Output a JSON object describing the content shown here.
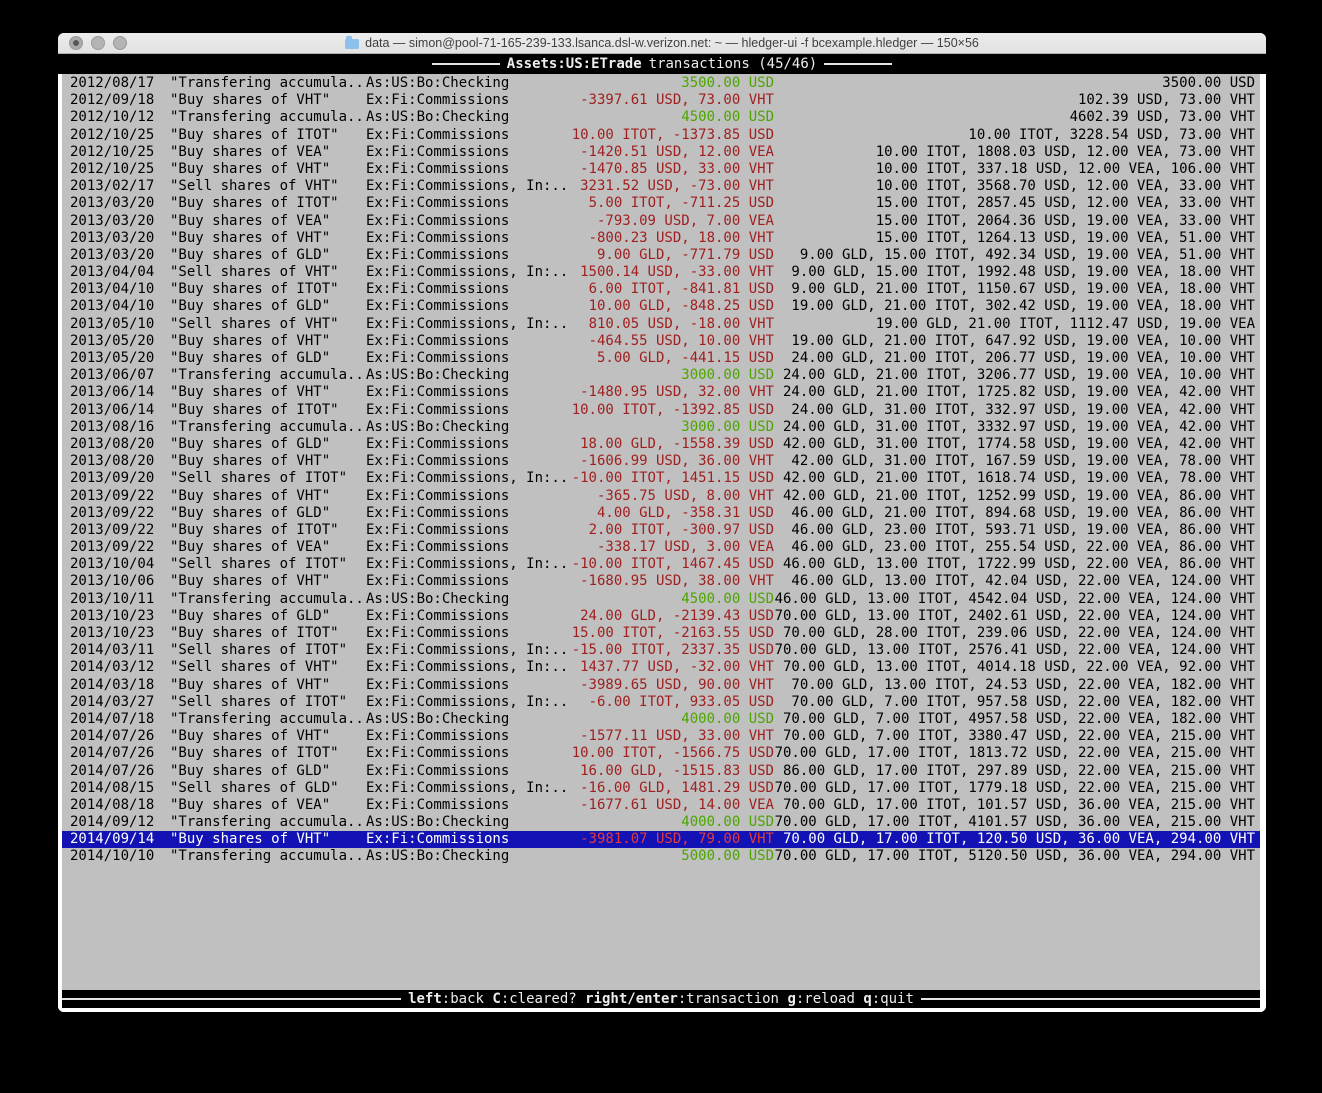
{
  "window": {
    "title": "data — simon@pool-71-165-239-133.lsanca.dsl-w.verizon.net: ~ — hledger-ui -f bcexample.hledger — 150×56",
    "traffic_lights": [
      "close",
      "minimize",
      "zoom"
    ]
  },
  "topbar": {
    "account": "Assets:US:ETrade",
    "mode": "transactions (45/46)"
  },
  "colors": {
    "terminal_bg": "#c0c0c0",
    "bar_bg": "#000000",
    "green": "#4ca500",
    "red": "#a02020",
    "red_selected": "#e33b3b",
    "selection_bg": "#1212b5"
  },
  "keybar": {
    "keys": [
      {
        "k": "left",
        "d": ":back"
      },
      {
        "k": "C",
        "d": ":cleared?"
      },
      {
        "k": "right/enter",
        "d": ":transaction"
      },
      {
        "k": "g",
        "d": ":reload"
      },
      {
        "k": "q",
        "d": ":quit"
      }
    ]
  },
  "transactions": [
    {
      "date": "2012/08/17",
      "desc": "\"Transfering accumula..",
      "acct": "As:US:Bo:Checking",
      "chg": "3500.00 USD",
      "chg_color": "green",
      "bal": "3500.00 USD",
      "selected": false
    },
    {
      "date": "2012/09/18",
      "desc": "\"Buy shares of VHT\"",
      "acct": "Ex:Fi:Commissions",
      "chg": "-3397.61 USD, 73.00 VHT",
      "chg_color": "red",
      "bal": "102.39 USD, 73.00 VHT",
      "selected": false
    },
    {
      "date": "2012/10/12",
      "desc": "\"Transfering accumula..",
      "acct": "As:US:Bo:Checking",
      "chg": "4500.00 USD",
      "chg_color": "green",
      "bal": "4602.39 USD, 73.00 VHT",
      "selected": false
    },
    {
      "date": "2012/10/25",
      "desc": "\"Buy shares of ITOT\"",
      "acct": "Ex:Fi:Commissions",
      "chg": "10.00 ITOT, -1373.85 USD",
      "chg_color": "red",
      "bal": "10.00 ITOT, 3228.54 USD, 73.00 VHT",
      "selected": false
    },
    {
      "date": "2012/10/25",
      "desc": "\"Buy shares of VEA\"",
      "acct": "Ex:Fi:Commissions",
      "chg": "-1420.51 USD, 12.00 VEA",
      "chg_color": "red",
      "bal": "10.00 ITOT, 1808.03 USD, 12.00 VEA, 73.00 VHT",
      "selected": false
    },
    {
      "date": "2012/10/25",
      "desc": "\"Buy shares of VHT\"",
      "acct": "Ex:Fi:Commissions",
      "chg": "-1470.85 USD, 33.00 VHT",
      "chg_color": "red",
      "bal": "10.00 ITOT, 337.18 USD, 12.00 VEA, 106.00 VHT",
      "selected": false
    },
    {
      "date": "2013/02/17",
      "desc": "\"Sell shares of VHT\"",
      "acct": "Ex:Fi:Commissions, In:..",
      "chg": "3231.52 USD, -73.00 VHT",
      "chg_color": "red",
      "bal": "10.00 ITOT, 3568.70 USD, 12.00 VEA, 33.00 VHT",
      "selected": false
    },
    {
      "date": "2013/03/20",
      "desc": "\"Buy shares of ITOT\"",
      "acct": "Ex:Fi:Commissions",
      "chg": "5.00 ITOT, -711.25 USD",
      "chg_color": "red",
      "bal": "15.00 ITOT, 2857.45 USD, 12.00 VEA, 33.00 VHT",
      "selected": false
    },
    {
      "date": "2013/03/20",
      "desc": "\"Buy shares of VEA\"",
      "acct": "Ex:Fi:Commissions",
      "chg": "-793.09 USD, 7.00 VEA",
      "chg_color": "red",
      "bal": "15.00 ITOT, 2064.36 USD, 19.00 VEA, 33.00 VHT",
      "selected": false
    },
    {
      "date": "2013/03/20",
      "desc": "\"Buy shares of VHT\"",
      "acct": "Ex:Fi:Commissions",
      "chg": "-800.23 USD, 18.00 VHT",
      "chg_color": "red",
      "bal": "15.00 ITOT, 1264.13 USD, 19.00 VEA, 51.00 VHT",
      "selected": false
    },
    {
      "date": "2013/03/20",
      "desc": "\"Buy shares of GLD\"",
      "acct": "Ex:Fi:Commissions",
      "chg": "9.00 GLD, -771.79 USD",
      "chg_color": "red",
      "bal": "9.00 GLD, 15.00 ITOT, 492.34 USD, 19.00 VEA, 51.00 VHT",
      "selected": false
    },
    {
      "date": "2013/04/04",
      "desc": "\"Sell shares of VHT\"",
      "acct": "Ex:Fi:Commissions, In:..",
      "chg": "1500.14 USD, -33.00 VHT",
      "chg_color": "red",
      "bal": "9.00 GLD, 15.00 ITOT, 1992.48 USD, 19.00 VEA, 18.00 VHT",
      "selected": false
    },
    {
      "date": "2013/04/10",
      "desc": "\"Buy shares of ITOT\"",
      "acct": "Ex:Fi:Commissions",
      "chg": "6.00 ITOT, -841.81 USD",
      "chg_color": "red",
      "bal": "9.00 GLD, 21.00 ITOT, 1150.67 USD, 19.00 VEA, 18.00 VHT",
      "selected": false
    },
    {
      "date": "2013/04/10",
      "desc": "\"Buy shares of GLD\"",
      "acct": "Ex:Fi:Commissions",
      "chg": "10.00 GLD, -848.25 USD",
      "chg_color": "red",
      "bal": "19.00 GLD, 21.00 ITOT, 302.42 USD, 19.00 VEA, 18.00 VHT",
      "selected": false
    },
    {
      "date": "2013/05/10",
      "desc": "\"Sell shares of VHT\"",
      "acct": "Ex:Fi:Commissions, In:..",
      "chg": "810.05 USD, -18.00 VHT",
      "chg_color": "red",
      "bal": "19.00 GLD, 21.00 ITOT, 1112.47 USD, 19.00 VEA",
      "selected": false
    },
    {
      "date": "2013/05/20",
      "desc": "\"Buy shares of VHT\"",
      "acct": "Ex:Fi:Commissions",
      "chg": "-464.55 USD, 10.00 VHT",
      "chg_color": "red",
      "bal": "19.00 GLD, 21.00 ITOT, 647.92 USD, 19.00 VEA, 10.00 VHT",
      "selected": false
    },
    {
      "date": "2013/05/20",
      "desc": "\"Buy shares of GLD\"",
      "acct": "Ex:Fi:Commissions",
      "chg": "5.00 GLD, -441.15 USD",
      "chg_color": "red",
      "bal": "24.00 GLD, 21.00 ITOT, 206.77 USD, 19.00 VEA, 10.00 VHT",
      "selected": false
    },
    {
      "date": "2013/06/07",
      "desc": "\"Transfering accumula..",
      "acct": "As:US:Bo:Checking",
      "chg": "3000.00 USD",
      "chg_color": "green",
      "bal": "24.00 GLD, 21.00 ITOT, 3206.77 USD, 19.00 VEA, 10.00 VHT",
      "selected": false
    },
    {
      "date": "2013/06/14",
      "desc": "\"Buy shares of VHT\"",
      "acct": "Ex:Fi:Commissions",
      "chg": "-1480.95 USD, 32.00 VHT",
      "chg_color": "red",
      "bal": "24.00 GLD, 21.00 ITOT, 1725.82 USD, 19.00 VEA, 42.00 VHT",
      "selected": false
    },
    {
      "date": "2013/06/14",
      "desc": "\"Buy shares of ITOT\"",
      "acct": "Ex:Fi:Commissions",
      "chg": "10.00 ITOT, -1392.85 USD",
      "chg_color": "red",
      "bal": "24.00 GLD, 31.00 ITOT, 332.97 USD, 19.00 VEA, 42.00 VHT",
      "selected": false
    },
    {
      "date": "2013/08/16",
      "desc": "\"Transfering accumula..",
      "acct": "As:US:Bo:Checking",
      "chg": "3000.00 USD",
      "chg_color": "green",
      "bal": "24.00 GLD, 31.00 ITOT, 3332.97 USD, 19.00 VEA, 42.00 VHT",
      "selected": false
    },
    {
      "date": "2013/08/20",
      "desc": "\"Buy shares of GLD\"",
      "acct": "Ex:Fi:Commissions",
      "chg": "18.00 GLD, -1558.39 USD",
      "chg_color": "red",
      "bal": "42.00 GLD, 31.00 ITOT, 1774.58 USD, 19.00 VEA, 42.00 VHT",
      "selected": false
    },
    {
      "date": "2013/08/20",
      "desc": "\"Buy shares of VHT\"",
      "acct": "Ex:Fi:Commissions",
      "chg": "-1606.99 USD, 36.00 VHT",
      "chg_color": "red",
      "bal": "42.00 GLD, 31.00 ITOT, 167.59 USD, 19.00 VEA, 78.00 VHT",
      "selected": false
    },
    {
      "date": "2013/09/20",
      "desc": "\"Sell shares of ITOT\"",
      "acct": "Ex:Fi:Commissions, In:..",
      "chg": "-10.00 ITOT, 1451.15 USD",
      "chg_color": "red",
      "bal": "42.00 GLD, 21.00 ITOT, 1618.74 USD, 19.00 VEA, 78.00 VHT",
      "selected": false
    },
    {
      "date": "2013/09/22",
      "desc": "\"Buy shares of VHT\"",
      "acct": "Ex:Fi:Commissions",
      "chg": "-365.75 USD, 8.00 VHT",
      "chg_color": "red",
      "bal": "42.00 GLD, 21.00 ITOT, 1252.99 USD, 19.00 VEA, 86.00 VHT",
      "selected": false
    },
    {
      "date": "2013/09/22",
      "desc": "\"Buy shares of GLD\"",
      "acct": "Ex:Fi:Commissions",
      "chg": "4.00 GLD, -358.31 USD",
      "chg_color": "red",
      "bal": "46.00 GLD, 21.00 ITOT, 894.68 USD, 19.00 VEA, 86.00 VHT",
      "selected": false
    },
    {
      "date": "2013/09/22",
      "desc": "\"Buy shares of ITOT\"",
      "acct": "Ex:Fi:Commissions",
      "chg": "2.00 ITOT, -300.97 USD",
      "chg_color": "red",
      "bal": "46.00 GLD, 23.00 ITOT, 593.71 USD, 19.00 VEA, 86.00 VHT",
      "selected": false
    },
    {
      "date": "2013/09/22",
      "desc": "\"Buy shares of VEA\"",
      "acct": "Ex:Fi:Commissions",
      "chg": "-338.17 USD, 3.00 VEA",
      "chg_color": "red",
      "bal": "46.00 GLD, 23.00 ITOT, 255.54 USD, 22.00 VEA, 86.00 VHT",
      "selected": false
    },
    {
      "date": "2013/10/04",
      "desc": "\"Sell shares of ITOT\"",
      "acct": "Ex:Fi:Commissions, In:..",
      "chg": "-10.00 ITOT, 1467.45 USD",
      "chg_color": "red",
      "bal": "46.00 GLD, 13.00 ITOT, 1722.99 USD, 22.00 VEA, 86.00 VHT",
      "selected": false
    },
    {
      "date": "2013/10/06",
      "desc": "\"Buy shares of VHT\"",
      "acct": "Ex:Fi:Commissions",
      "chg": "-1680.95 USD, 38.00 VHT",
      "chg_color": "red",
      "bal": "46.00 GLD, 13.00 ITOT, 42.04 USD, 22.00 VEA, 124.00 VHT",
      "selected": false
    },
    {
      "date": "2013/10/11",
      "desc": "\"Transfering accumula..",
      "acct": "As:US:Bo:Checking",
      "chg": "4500.00 USD",
      "chg_color": "green",
      "bal": "46.00 GLD, 13.00 ITOT, 4542.04 USD, 22.00 VEA, 124.00 VHT",
      "selected": false
    },
    {
      "date": "2013/10/23",
      "desc": "\"Buy shares of GLD\"",
      "acct": "Ex:Fi:Commissions",
      "chg": "24.00 GLD, -2139.43 USD",
      "chg_color": "red",
      "bal": "70.00 GLD, 13.00 ITOT, 2402.61 USD, 22.00 VEA, 124.00 VHT",
      "selected": false
    },
    {
      "date": "2013/10/23",
      "desc": "\"Buy shares of ITOT\"",
      "acct": "Ex:Fi:Commissions",
      "chg": "15.00 ITOT, -2163.55 USD",
      "chg_color": "red",
      "bal": "70.00 GLD, 28.00 ITOT, 239.06 USD, 22.00 VEA, 124.00 VHT",
      "selected": false
    },
    {
      "date": "2014/03/11",
      "desc": "\"Sell shares of ITOT\"",
      "acct": "Ex:Fi:Commissions, In:..",
      "chg": "-15.00 ITOT, 2337.35 USD",
      "chg_color": "red",
      "bal": "70.00 GLD, 13.00 ITOT, 2576.41 USD, 22.00 VEA, 124.00 VHT",
      "selected": false
    },
    {
      "date": "2014/03/12",
      "desc": "\"Sell shares of VHT\"",
      "acct": "Ex:Fi:Commissions, In:..",
      "chg": "1437.77 USD, -32.00 VHT",
      "chg_color": "red",
      "bal": "70.00 GLD, 13.00 ITOT, 4014.18 USD, 22.00 VEA, 92.00 VHT",
      "selected": false
    },
    {
      "date": "2014/03/18",
      "desc": "\"Buy shares of VHT\"",
      "acct": "Ex:Fi:Commissions",
      "chg": "-3989.65 USD, 90.00 VHT",
      "chg_color": "red",
      "bal": "70.00 GLD, 13.00 ITOT, 24.53 USD, 22.00 VEA, 182.00 VHT",
      "selected": false
    },
    {
      "date": "2014/03/27",
      "desc": "\"Sell shares of ITOT\"",
      "acct": "Ex:Fi:Commissions, In:..",
      "chg": "-6.00 ITOT, 933.05 USD",
      "chg_color": "red",
      "bal": "70.00 GLD, 7.00 ITOT, 957.58 USD, 22.00 VEA, 182.00 VHT",
      "selected": false
    },
    {
      "date": "2014/07/18",
      "desc": "\"Transfering accumula..",
      "acct": "As:US:Bo:Checking",
      "chg": "4000.00 USD",
      "chg_color": "green",
      "bal": "70.00 GLD, 7.00 ITOT, 4957.58 USD, 22.00 VEA, 182.00 VHT",
      "selected": false
    },
    {
      "date": "2014/07/26",
      "desc": "\"Buy shares of VHT\"",
      "acct": "Ex:Fi:Commissions",
      "chg": "-1577.11 USD, 33.00 VHT",
      "chg_color": "red",
      "bal": "70.00 GLD, 7.00 ITOT, 3380.47 USD, 22.00 VEA, 215.00 VHT",
      "selected": false
    },
    {
      "date": "2014/07/26",
      "desc": "\"Buy shares of ITOT\"",
      "acct": "Ex:Fi:Commissions",
      "chg": "10.00 ITOT, -1566.75 USD",
      "chg_color": "red",
      "bal": "70.00 GLD, 17.00 ITOT, 1813.72 USD, 22.00 VEA, 215.00 VHT",
      "selected": false
    },
    {
      "date": "2014/07/26",
      "desc": "\"Buy shares of GLD\"",
      "acct": "Ex:Fi:Commissions",
      "chg": "16.00 GLD, -1515.83 USD",
      "chg_color": "red",
      "bal": "86.00 GLD, 17.00 ITOT, 297.89 USD, 22.00 VEA, 215.00 VHT",
      "selected": false
    },
    {
      "date": "2014/08/15",
      "desc": "\"Sell shares of GLD\"",
      "acct": "Ex:Fi:Commissions, In:..",
      "chg": "-16.00 GLD, 1481.29 USD",
      "chg_color": "red",
      "bal": "70.00 GLD, 17.00 ITOT, 1779.18 USD, 22.00 VEA, 215.00 VHT",
      "selected": false
    },
    {
      "date": "2014/08/18",
      "desc": "\"Buy shares of VEA\"",
      "acct": "Ex:Fi:Commissions",
      "chg": "-1677.61 USD, 14.00 VEA",
      "chg_color": "red",
      "bal": "70.00 GLD, 17.00 ITOT, 101.57 USD, 36.00 VEA, 215.00 VHT",
      "selected": false
    },
    {
      "date": "2014/09/12",
      "desc": "\"Transfering accumula..",
      "acct": "As:US:Bo:Checking",
      "chg": "4000.00 USD",
      "chg_color": "green",
      "bal": "70.00 GLD, 17.00 ITOT, 4101.57 USD, 36.00 VEA, 215.00 VHT",
      "selected": false
    },
    {
      "date": "2014/09/14",
      "desc": "\"Buy shares of VHT\"",
      "acct": "Ex:Fi:Commissions",
      "chg": "-3981.07 USD, 79.00 VHT",
      "chg_color": "red",
      "bal": "70.00 GLD, 17.00 ITOT, 120.50 USD, 36.00 VEA, 294.00 VHT",
      "selected": true
    },
    {
      "date": "2014/10/10",
      "desc": "\"Transfering accumula..",
      "acct": "As:US:Bo:Checking",
      "chg": "5000.00 USD",
      "chg_color": "green",
      "bal": "70.00 GLD, 17.00 ITOT, 5120.50 USD, 36.00 VEA, 294.00 VHT",
      "selected": false
    }
  ]
}
